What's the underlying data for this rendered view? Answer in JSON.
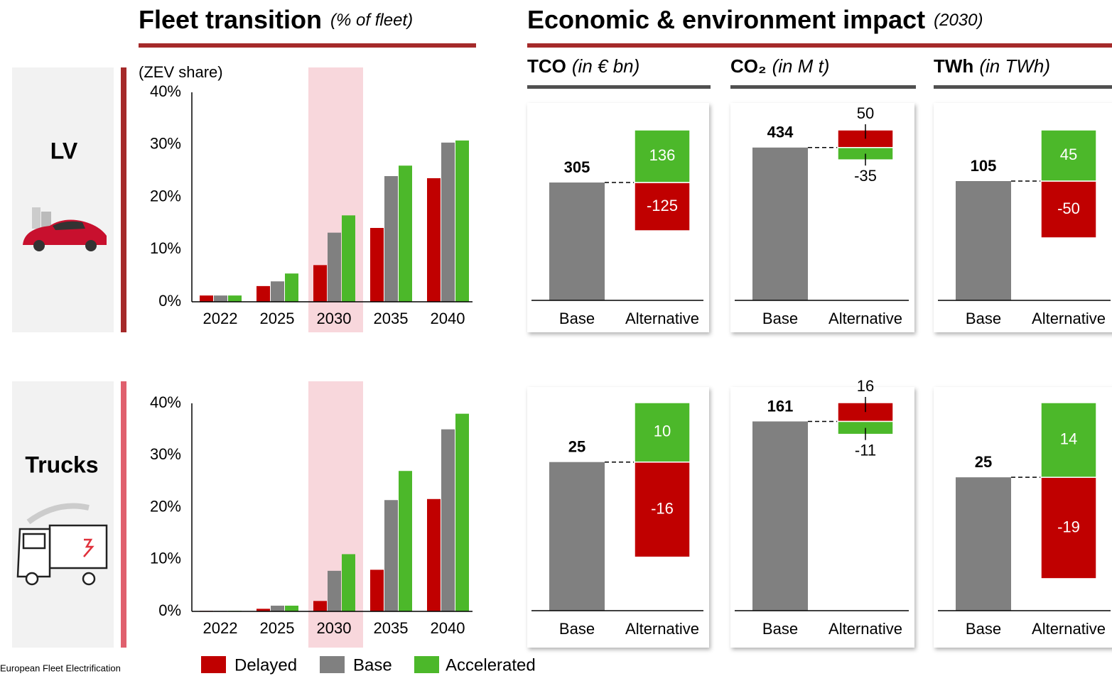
{
  "headings": {
    "fleet": {
      "title": "Fleet transition",
      "unit": "(% of fleet)"
    },
    "impact": {
      "title": "Economic & environment impact",
      "unit": "(2030)"
    }
  },
  "rows": [
    "LV",
    "Trucks"
  ],
  "footnote": "European Fleet Electrification",
  "chart_data": [
    {
      "type": "bar",
      "y_label": "(ZEV share)",
      "categories": [
        "2022",
        "2025",
        "2030",
        "2035",
        "2040"
      ],
      "highlight": "2030",
      "series": [
        {
          "name": "Delayed",
          "color": "#c00000",
          "values": [
            1.2,
            3,
            7,
            14.1,
            23.6
          ]
        },
        {
          "name": "Base",
          "color": "#808080",
          "values": [
            1.2,
            3.9,
            13.2,
            24,
            30.4
          ]
        },
        {
          "name": "Accelerated",
          "color": "#4cb82a",
          "values": [
            1.2,
            5.4,
            16.5,
            26,
            30.8
          ]
        }
      ],
      "ylim": [
        0,
        40
      ],
      "yticks": [
        {
          "value": 0,
          "label": "0%"
        },
        {
          "value": 10,
          "label": "10%"
        },
        {
          "value": 20,
          "label": "20%"
        },
        {
          "value": 30,
          "label": "30%"
        },
        {
          "value": 40,
          "label": "40%"
        }
      ]
    },
    {
      "type": "bar",
      "categories": [
        "2022",
        "2025",
        "2030",
        "2035",
        "2040"
      ],
      "highlight": "2030",
      "series": [
        {
          "color": "#c00000",
          "values": [
            0.1,
            0.5,
            2,
            8,
            21.6
          ]
        },
        {
          "color": "#808080",
          "values": [
            0.1,
            1.1,
            7.8,
            21.4,
            35
          ]
        },
        {
          "color": "#4cb82a",
          "values": [
            0.1,
            1.1,
            11,
            27,
            38
          ]
        }
      ],
      "ylim": [
        0,
        40
      ],
      "yticks": [
        {
          "value": 0,
          "label": "0%"
        },
        {
          "value": 10,
          "label": "10%"
        },
        {
          "value": 20,
          "label": "20%"
        },
        {
          "value": 30,
          "label": "30%"
        },
        {
          "value": 40,
          "label": "40%"
        }
      ]
    },
    {
      "type": "waterfall",
      "title": "TCO",
      "unit": "(in € bn)",
      "categories": [
        "Base",
        "Alternative"
      ],
      "base": 305,
      "deltas": [
        -125,
        136
      ],
      "colors": [
        "#808080",
        "#c00000",
        "#4cb82a"
      ]
    },
    {
      "type": "waterfall",
      "title": "CO₂",
      "unit": "(in M t)",
      "categories": [
        "Base",
        "Alternative"
      ],
      "base": 434,
      "deltas": [
        50,
        -35
      ],
      "colors": [
        "#808080",
        "#c00000",
        "#4cb82a"
      ]
    },
    {
      "type": "waterfall",
      "title": "TWh",
      "unit": "(in TWh)",
      "categories": [
        "Base",
        "Alternative"
      ],
      "base": 105,
      "deltas": [
        -50,
        45
      ],
      "colors": [
        "#808080",
        "#c00000",
        "#4cb82a"
      ]
    },
    {
      "type": "waterfall",
      "categories": [
        "Base",
        "Alternative"
      ],
      "base": 25,
      "deltas": [
        -16,
        10
      ],
      "colors": [
        "#808080",
        "#c00000",
        "#4cb82a"
      ]
    },
    {
      "type": "waterfall",
      "categories": [
        "Base",
        "Alternative"
      ],
      "base": 161,
      "deltas": [
        16,
        -11
      ],
      "colors": [
        "#808080",
        "#c00000",
        "#4cb82a"
      ]
    },
    {
      "type": "waterfall",
      "categories": [
        "Base",
        "Alternative"
      ],
      "base": 25,
      "deltas": [
        -19,
        14
      ],
      "colors": [
        "#808080",
        "#c00000",
        "#4cb82a"
      ]
    }
  ]
}
